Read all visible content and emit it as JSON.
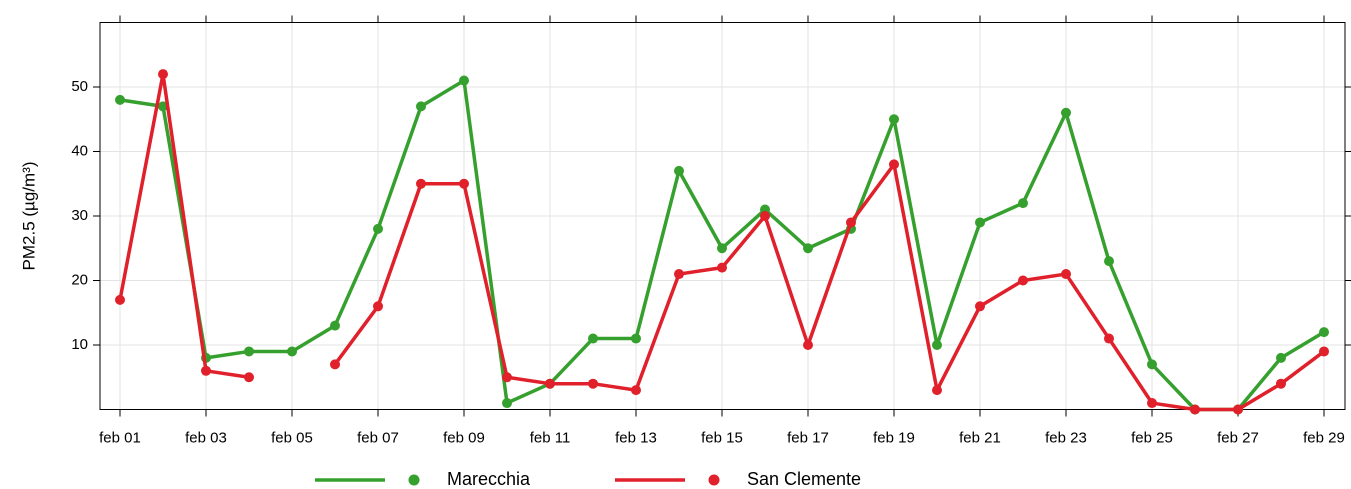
{
  "chart_data": {
    "type": "line",
    "y_label": "PM2.5 (µg/m³)",
    "categories": [
      "feb 01",
      null,
      "feb 03",
      null,
      "feb 05",
      null,
      "feb 07",
      null,
      "feb 09",
      null,
      "feb 11",
      null,
      "feb 13",
      null,
      "feb 15",
      null,
      "feb 17",
      null,
      "feb 19",
      null,
      "feb 21",
      null,
      "feb 23",
      null,
      "feb 25",
      null,
      "feb 27",
      null,
      "feb 29"
    ],
    "series": [
      {
        "name": "Marecchia",
        "color": "#36a02e",
        "values": [
          48,
          47,
          8,
          9,
          9,
          13,
          28,
          47,
          51,
          1,
          4,
          11,
          11,
          37,
          25,
          31,
          25,
          28,
          45,
          10,
          29,
          32,
          46,
          23,
          7,
          0,
          0,
          8,
          12
        ]
      },
      {
        "name": "San Clemente",
        "color": "#e0202a",
        "values": [
          17,
          52,
          6,
          5,
          null,
          7,
          16,
          35,
          35,
          5,
          4,
          4,
          3,
          21,
          22,
          30,
          10,
          29,
          38,
          3,
          16,
          20,
          21,
          11,
          1,
          0,
          0,
          4,
          9
        ]
      }
    ],
    "ylim": [
      0,
      60
    ],
    "yticks": [
      10,
      20,
      30,
      40,
      50
    ],
    "grid": true,
    "legend": "bottom"
  }
}
